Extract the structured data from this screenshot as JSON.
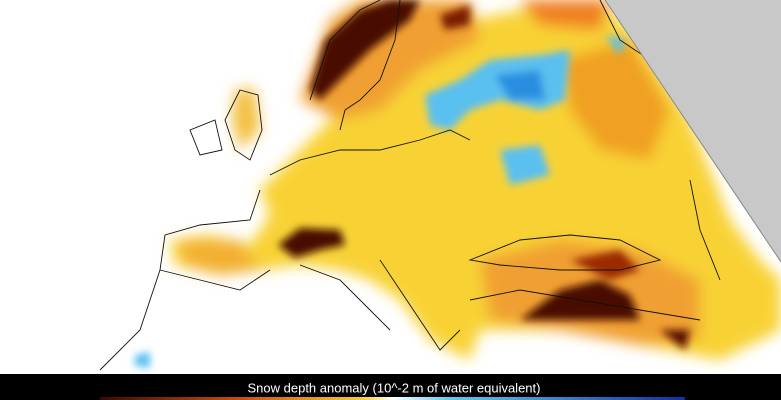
{
  "colorbar": {
    "label": "Snow depth anomaly (10^-2 m of water equivalent)"
  }
}
